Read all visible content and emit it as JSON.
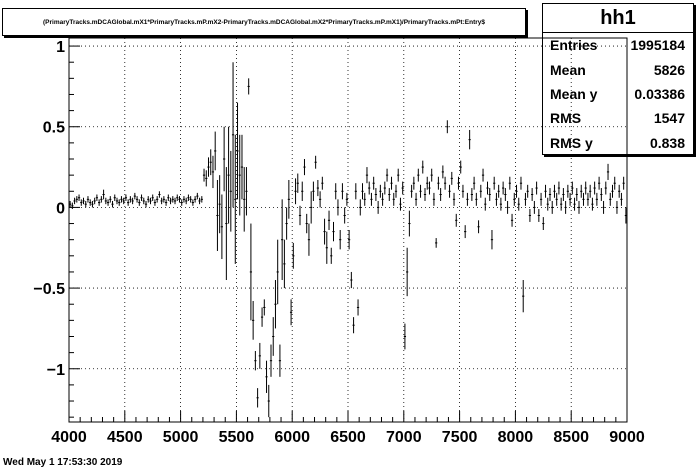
{
  "title": "(PrimaryTracks.mDCAGlobal.mX1*PrimaryTracks.mP.mX2-PrimaryTracks.mDCAGlobal.mX2*PrimaryTracks.mP.mX1)/PrimaryTracks.mPt:Entry$",
  "stats": {
    "name": "hh1",
    "rows": [
      {
        "label": "Entries",
        "value": "1995184"
      },
      {
        "label": "Mean",
        "value": "5826"
      },
      {
        "label": "Mean y",
        "value": "0.03386"
      },
      {
        "label": "RMS",
        "value": "1547"
      },
      {
        "label": "RMS y",
        "value": "0.838"
      }
    ]
  },
  "footer": {
    "date": "Wed May  1 17:53:30 2019"
  },
  "chart_data": {
    "type": "scatter",
    "title": "(PrimaryTracks.mDCAGlobal.mX1*PrimaryTracks.mP.mX2-PrimaryTracks.mDCAGlobal.mX2*PrimaryTracks.mP.mX1)/PrimaryTracks.mPt:Entry$",
    "xlabel": "",
    "ylabel": "",
    "xlim": [
      4000,
      9000
    ],
    "ylim": [
      -1.33,
      1.05
    ],
    "grid": true,
    "x_ticks": [
      "4000",
      "4500",
      "5000",
      "5500",
      "6000",
      "6500",
      "7000",
      "7500",
      "8000",
      "8500",
      "9000"
    ],
    "y_ticks": [
      "1",
      "0.5",
      "0",
      "−0.5",
      "−1"
    ],
    "points": [
      {
        "x": 4010,
        "y": 0.02,
        "e": 0.02
      },
      {
        "x": 4030,
        "y": 0.01,
        "e": 0.02
      },
      {
        "x": 4050,
        "y": 0.04,
        "e": 0.02
      },
      {
        "x": 4070,
        "y": 0.05,
        "e": 0.02
      },
      {
        "x": 4090,
        "y": 0.06,
        "e": 0.02
      },
      {
        "x": 4110,
        "y": 0.03,
        "e": 0.02
      },
      {
        "x": 4130,
        "y": 0.04,
        "e": 0.02
      },
      {
        "x": 4150,
        "y": 0.02,
        "e": 0.02
      },
      {
        "x": 4170,
        "y": 0.05,
        "e": 0.02
      },
      {
        "x": 4190,
        "y": 0.03,
        "e": 0.02
      },
      {
        "x": 4210,
        "y": 0.02,
        "e": 0.02
      },
      {
        "x": 4230,
        "y": 0.04,
        "e": 0.02
      },
      {
        "x": 4250,
        "y": 0.06,
        "e": 0.02
      },
      {
        "x": 4270,
        "y": 0.03,
        "e": 0.02
      },
      {
        "x": 4290,
        "y": 0.05,
        "e": 0.02
      },
      {
        "x": 4310,
        "y": 0.08,
        "e": 0.03
      },
      {
        "x": 4330,
        "y": 0.04,
        "e": 0.02
      },
      {
        "x": 4350,
        "y": 0.03,
        "e": 0.02
      },
      {
        "x": 4370,
        "y": 0.05,
        "e": 0.02
      },
      {
        "x": 4390,
        "y": 0.02,
        "e": 0.02
      },
      {
        "x": 4410,
        "y": 0.06,
        "e": 0.02
      },
      {
        "x": 4430,
        "y": 0.04,
        "e": 0.02
      },
      {
        "x": 4450,
        "y": 0.03,
        "e": 0.02
      },
      {
        "x": 4470,
        "y": 0.05,
        "e": 0.02
      },
      {
        "x": 4490,
        "y": 0.04,
        "e": 0.02
      },
      {
        "x": 4510,
        "y": 0.06,
        "e": 0.02
      },
      {
        "x": 4530,
        "y": 0.03,
        "e": 0.02
      },
      {
        "x": 4550,
        "y": 0.05,
        "e": 0.02
      },
      {
        "x": 4570,
        "y": 0.04,
        "e": 0.02
      },
      {
        "x": 4590,
        "y": 0.07,
        "e": 0.02
      },
      {
        "x": 4610,
        "y": 0.05,
        "e": 0.02
      },
      {
        "x": 4630,
        "y": 0.03,
        "e": 0.02
      },
      {
        "x": 4650,
        "y": 0.06,
        "e": 0.02
      },
      {
        "x": 4670,
        "y": 0.04,
        "e": 0.02
      },
      {
        "x": 4690,
        "y": 0.02,
        "e": 0.02
      },
      {
        "x": 4710,
        "y": 0.05,
        "e": 0.02
      },
      {
        "x": 4730,
        "y": 0.04,
        "e": 0.02
      },
      {
        "x": 4750,
        "y": 0.06,
        "e": 0.02
      },
      {
        "x": 4770,
        "y": 0.03,
        "e": 0.02
      },
      {
        "x": 4790,
        "y": 0.05,
        "e": 0.02
      },
      {
        "x": 4810,
        "y": 0.08,
        "e": 0.02
      },
      {
        "x": 4830,
        "y": 0.04,
        "e": 0.02
      },
      {
        "x": 4850,
        "y": 0.05,
        "e": 0.02
      },
      {
        "x": 4870,
        "y": 0.03,
        "e": 0.02
      },
      {
        "x": 4890,
        "y": 0.06,
        "e": 0.02
      },
      {
        "x": 4910,
        "y": 0.04,
        "e": 0.02
      },
      {
        "x": 4930,
        "y": 0.05,
        "e": 0.02
      },
      {
        "x": 4950,
        "y": 0.04,
        "e": 0.02
      },
      {
        "x": 4970,
        "y": 0.06,
        "e": 0.02
      },
      {
        "x": 4990,
        "y": 0.05,
        "e": 0.02
      },
      {
        "x": 5010,
        "y": 0.03,
        "e": 0.02
      },
      {
        "x": 5030,
        "y": 0.05,
        "e": 0.02
      },
      {
        "x": 5050,
        "y": 0.04,
        "e": 0.02
      },
      {
        "x": 5070,
        "y": 0.06,
        "e": 0.02
      },
      {
        "x": 5090,
        "y": 0.05,
        "e": 0.02
      },
      {
        "x": 5110,
        "y": 0.03,
        "e": 0.02
      },
      {
        "x": 5130,
        "y": 0.05,
        "e": 0.02
      },
      {
        "x": 5150,
        "y": 0.07,
        "e": 0.02
      },
      {
        "x": 5170,
        "y": 0.04,
        "e": 0.02
      },
      {
        "x": 5190,
        "y": 0.05,
        "e": 0.02
      },
      {
        "x": 5210,
        "y": 0.2,
        "e": 0.04
      },
      {
        "x": 5230,
        "y": 0.18,
        "e": 0.05
      },
      {
        "x": 5250,
        "y": 0.25,
        "e": 0.06
      },
      {
        "x": 5270,
        "y": 0.28,
        "e": 0.08
      },
      {
        "x": 5290,
        "y": 0.22,
        "e": 0.1
      },
      {
        "x": 5310,
        "y": 0.35,
        "e": 0.12
      },
      {
        "x": 5330,
        "y": -0.05,
        "e": 0.22
      },
      {
        "x": 5350,
        "y": 0.02,
        "e": 0.18
      },
      {
        "x": 5370,
        "y": -0.12,
        "e": 0.2
      },
      {
        "x": 5390,
        "y": 0.3,
        "e": 0.2
      },
      {
        "x": 5410,
        "y": -0.1,
        "e": 0.35
      },
      {
        "x": 5430,
        "y": 0.2,
        "e": 0.3
      },
      {
        "x": 5450,
        "y": 0.1,
        "e": 0.25
      },
      {
        "x": 5470,
        "y": 0.45,
        "e": 0.45
      },
      {
        "x": 5490,
        "y": 0.05,
        "e": 0.4
      },
      {
        "x": 5510,
        "y": 0.35,
        "e": 0.3
      },
      {
        "x": 5530,
        "y": 0.2,
        "e": 0.25
      },
      {
        "x": 5550,
        "y": 0.25,
        "e": 0.2
      },
      {
        "x": 5570,
        "y": 0.05,
        "e": 0.2
      },
      {
        "x": 5590,
        "y": 0.1,
        "e": 0.15
      },
      {
        "x": 5610,
        "y": 0.75,
        "e": 0.05
      },
      {
        "x": 5630,
        "y": -0.4,
        "e": 0.3
      },
      {
        "x": 5650,
        "y": -0.7,
        "e": 0.12
      },
      {
        "x": 5670,
        "y": -0.95,
        "e": 0.06
      },
      {
        "x": 5690,
        "y": -1.18,
        "e": 0.06
      },
      {
        "x": 5710,
        "y": -0.92,
        "e": 0.08
      },
      {
        "x": 5730,
        "y": -0.68,
        "e": 0.06
      },
      {
        "x": 5750,
        "y": -0.62,
        "e": 0.05
      },
      {
        "x": 5770,
        "y": -1.05,
        "e": 0.1
      },
      {
        "x": 5790,
        "y": -1.2,
        "e": 0.1
      },
      {
        "x": 5810,
        "y": -0.95,
        "e": 0.1
      },
      {
        "x": 5830,
        "y": -0.8,
        "e": 0.12
      },
      {
        "x": 5850,
        "y": -0.6,
        "e": 0.15
      },
      {
        "x": 5870,
        "y": -0.4,
        "e": 0.2
      },
      {
        "x": 5890,
        "y": -0.95,
        "e": 0.1
      },
      {
        "x": 5910,
        "y": -0.2,
        "e": 0.25
      },
      {
        "x": 5930,
        "y": -0.35,
        "e": 0.15
      },
      {
        "x": 5950,
        "y": -0.1,
        "e": 0.1
      },
      {
        "x": 5970,
        "y": 0.05,
        "e": 0.12
      },
      {
        "x": 5990,
        "y": -0.65,
        "e": 0.08
      },
      {
        "x": 6010,
        "y": -0.3,
        "e": 0.08
      },
      {
        "x": 6030,
        "y": 0.1,
        "e": 0.08
      },
      {
        "x": 6050,
        "y": 0.15,
        "e": 0.06
      },
      {
        "x": 6070,
        "y": -0.05,
        "e": 0.06
      },
      {
        "x": 6090,
        "y": 0.1,
        "e": 0.06
      },
      {
        "x": 6110,
        "y": 0.25,
        "e": 0.05
      },
      {
        "x": 6130,
        "y": -0.1,
        "e": 0.06
      },
      {
        "x": 6150,
        "y": -0.2,
        "e": 0.1
      },
      {
        "x": 6170,
        "y": 0.0,
        "e": 0.1
      },
      {
        "x": 6190,
        "y": 0.1,
        "e": 0.06
      },
      {
        "x": 6210,
        "y": 0.28,
        "e": 0.04
      },
      {
        "x": 6230,
        "y": 0.12,
        "e": 0.05
      },
      {
        "x": 6250,
        "y": 0.05,
        "e": 0.05
      },
      {
        "x": 6270,
        "y": 0.15,
        "e": 0.04
      },
      {
        "x": 6290,
        "y": -0.15,
        "e": 0.08
      },
      {
        "x": 6310,
        "y": -0.25,
        "e": 0.1
      },
      {
        "x": 6330,
        "y": -0.08,
        "e": 0.06
      },
      {
        "x": 6350,
        "y": -0.3,
        "e": 0.05
      },
      {
        "x": 6370,
        "y": -0.15,
        "e": 0.06
      },
      {
        "x": 6390,
        "y": 0.1,
        "e": 0.05
      },
      {
        "x": 6410,
        "y": 0.0,
        "e": 0.05
      },
      {
        "x": 6430,
        "y": -0.2,
        "e": 0.06
      },
      {
        "x": 6450,
        "y": 0.1,
        "e": 0.05
      },
      {
        "x": 6470,
        "y": -0.05,
        "e": 0.05
      },
      {
        "x": 6490,
        "y": 0.05,
        "e": 0.04
      },
      {
        "x": 6510,
        "y": -0.2,
        "e": 0.06
      },
      {
        "x": 6530,
        "y": -0.45,
        "e": 0.05
      },
      {
        "x": 6550,
        "y": -0.73,
        "e": 0.05
      },
      {
        "x": 6570,
        "y": 0.1,
        "e": 0.05
      },
      {
        "x": 6590,
        "y": -0.62,
        "e": 0.05
      },
      {
        "x": 6610,
        "y": 0.0,
        "e": 0.05
      },
      {
        "x": 6630,
        "y": 0.1,
        "e": 0.05
      },
      {
        "x": 6650,
        "y": 0.05,
        "e": 0.04
      },
      {
        "x": 6670,
        "y": 0.2,
        "e": 0.05
      },
      {
        "x": 6690,
        "y": 0.12,
        "e": 0.04
      },
      {
        "x": 6710,
        "y": 0.05,
        "e": 0.04
      },
      {
        "x": 6730,
        "y": 0.15,
        "e": 0.04
      },
      {
        "x": 6750,
        "y": 0.08,
        "e": 0.04
      },
      {
        "x": 6770,
        "y": 0.0,
        "e": 0.04
      },
      {
        "x": 6790,
        "y": 0.1,
        "e": 0.04
      },
      {
        "x": 6810,
        "y": 0.05,
        "e": 0.04
      },
      {
        "x": 6830,
        "y": 0.12,
        "e": 0.04
      },
      {
        "x": 6850,
        "y": 0.2,
        "e": 0.04
      },
      {
        "x": 6870,
        "y": 0.08,
        "e": 0.04
      },
      {
        "x": 6890,
        "y": 0.15,
        "e": 0.04
      },
      {
        "x": 6910,
        "y": 0.05,
        "e": 0.04
      },
      {
        "x": 6930,
        "y": 0.1,
        "e": 0.04
      },
      {
        "x": 6950,
        "y": 0.2,
        "e": 0.04
      },
      {
        "x": 6970,
        "y": 0.02,
        "e": 0.04
      },
      {
        "x": 6990,
        "y": 0.12,
        "e": 0.04
      },
      {
        "x": 7010,
        "y": -0.8,
        "e": 0.08
      },
      {
        "x": 7030,
        "y": -0.4,
        "e": 0.15
      },
      {
        "x": 7050,
        "y": -0.1,
        "e": 0.08
      },
      {
        "x": 7070,
        "y": 0.1,
        "e": 0.04
      },
      {
        "x": 7090,
        "y": 0.15,
        "e": 0.04
      },
      {
        "x": 7110,
        "y": 0.05,
        "e": 0.04
      },
      {
        "x": 7130,
        "y": 0.2,
        "e": 0.04
      },
      {
        "x": 7150,
        "y": 0.1,
        "e": 0.04
      },
      {
        "x": 7170,
        "y": 0.25,
        "e": 0.04
      },
      {
        "x": 7190,
        "y": 0.08,
        "e": 0.04
      },
      {
        "x": 7210,
        "y": 0.15,
        "e": 0.04
      },
      {
        "x": 7230,
        "y": 0.12,
        "e": 0.04
      },
      {
        "x": 7250,
        "y": 0.2,
        "e": 0.04
      },
      {
        "x": 7270,
        "y": 0.05,
        "e": 0.04
      },
      {
        "x": 7290,
        "y": -0.22,
        "e": 0.03
      },
      {
        "x": 7310,
        "y": 0.15,
        "e": 0.04
      },
      {
        "x": 7330,
        "y": 0.08,
        "e": 0.04
      },
      {
        "x": 7350,
        "y": 0.22,
        "e": 0.04
      },
      {
        "x": 7370,
        "y": 0.15,
        "e": 0.04
      },
      {
        "x": 7390,
        "y": 0.5,
        "e": 0.04
      },
      {
        "x": 7410,
        "y": 0.1,
        "e": 0.04
      },
      {
        "x": 7430,
        "y": 0.18,
        "e": 0.04
      },
      {
        "x": 7450,
        "y": 0.05,
        "e": 0.04
      },
      {
        "x": 7470,
        "y": -0.08,
        "e": 0.04
      },
      {
        "x": 7490,
        "y": 0.15,
        "e": 0.04
      },
      {
        "x": 7510,
        "y": 0.25,
        "e": 0.04
      },
      {
        "x": 7530,
        "y": 0.1,
        "e": 0.04
      },
      {
        "x": 7550,
        "y": -0.15,
        "e": 0.04
      },
      {
        "x": 7570,
        "y": 0.05,
        "e": 0.04
      },
      {
        "x": 7590,
        "y": 0.42,
        "e": 0.06
      },
      {
        "x": 7610,
        "y": 0.08,
        "e": 0.04
      },
      {
        "x": 7630,
        "y": 0.15,
        "e": 0.04
      },
      {
        "x": 7650,
        "y": 0.05,
        "e": 0.04
      },
      {
        "x": 7670,
        "y": -0.12,
        "e": 0.04
      },
      {
        "x": 7690,
        "y": 0.1,
        "e": 0.04
      },
      {
        "x": 7710,
        "y": 0.2,
        "e": 0.04
      },
      {
        "x": 7730,
        "y": 0.02,
        "e": 0.04
      },
      {
        "x": 7750,
        "y": 0.12,
        "e": 0.04
      },
      {
        "x": 7770,
        "y": 0.08,
        "e": 0.04
      },
      {
        "x": 7790,
        "y": -0.2,
        "e": 0.06
      },
      {
        "x": 7810,
        "y": 0.15,
        "e": 0.04
      },
      {
        "x": 7830,
        "y": 0.05,
        "e": 0.04
      },
      {
        "x": 7850,
        "y": 0.1,
        "e": 0.04
      },
      {
        "x": 7870,
        "y": 0.02,
        "e": 0.04
      },
      {
        "x": 7890,
        "y": 0.12,
        "e": 0.04
      },
      {
        "x": 7910,
        "y": 0.08,
        "e": 0.04
      },
      {
        "x": 7930,
        "y": 0.0,
        "e": 0.04
      },
      {
        "x": 7950,
        "y": 0.15,
        "e": 0.04
      },
      {
        "x": 7970,
        "y": -0.08,
        "e": 0.04
      },
      {
        "x": 7990,
        "y": 0.05,
        "e": 0.04
      },
      {
        "x": 8010,
        "y": 0.1,
        "e": 0.04
      },
      {
        "x": 8030,
        "y": 0.02,
        "e": 0.04
      },
      {
        "x": 8050,
        "y": 0.15,
        "e": 0.04
      },
      {
        "x": 8070,
        "y": -0.55,
        "e": 0.1
      },
      {
        "x": 8090,
        "y": 0.05,
        "e": 0.04
      },
      {
        "x": 8110,
        "y": 0.1,
        "e": 0.04
      },
      {
        "x": 8130,
        "y": -0.05,
        "e": 0.04
      },
      {
        "x": 8150,
        "y": 0.08,
        "e": 0.04
      },
      {
        "x": 8170,
        "y": 0.0,
        "e": 0.04
      },
      {
        "x": 8190,
        "y": 0.12,
        "e": 0.04
      },
      {
        "x": 8210,
        "y": -0.05,
        "e": 0.04
      },
      {
        "x": 8230,
        "y": 0.05,
        "e": 0.04
      },
      {
        "x": 8250,
        "y": -0.1,
        "e": 0.04
      },
      {
        "x": 8270,
        "y": 0.1,
        "e": 0.04
      },
      {
        "x": 8290,
        "y": 0.02,
        "e": 0.04
      },
      {
        "x": 8310,
        "y": 0.08,
        "e": 0.04
      },
      {
        "x": 8330,
        "y": 0.0,
        "e": 0.04
      },
      {
        "x": 8350,
        "y": 0.1,
        "e": 0.04
      },
      {
        "x": 8370,
        "y": 0.05,
        "e": 0.04
      },
      {
        "x": 8390,
        "y": 0.12,
        "e": 0.04
      },
      {
        "x": 8410,
        "y": 0.02,
        "e": 0.04
      },
      {
        "x": 8430,
        "y": 0.08,
        "e": 0.04
      },
      {
        "x": 8450,
        "y": 0.0,
        "e": 0.04
      },
      {
        "x": 8470,
        "y": 0.1,
        "e": 0.04
      },
      {
        "x": 8490,
        "y": 0.05,
        "e": 0.04
      },
      {
        "x": 8510,
        "y": 0.12,
        "e": 0.04
      },
      {
        "x": 8530,
        "y": 0.02,
        "e": 0.04
      },
      {
        "x": 8550,
        "y": 0.08,
        "e": 0.04
      },
      {
        "x": 8570,
        "y": 0.0,
        "e": 0.04
      },
      {
        "x": 8590,
        "y": 0.1,
        "e": 0.04
      },
      {
        "x": 8610,
        "y": 0.05,
        "e": 0.04
      },
      {
        "x": 8630,
        "y": 0.12,
        "e": 0.04
      },
      {
        "x": 8650,
        "y": 0.05,
        "e": 0.04
      },
      {
        "x": 8670,
        "y": 0.1,
        "e": 0.04
      },
      {
        "x": 8690,
        "y": 0.02,
        "e": 0.04
      },
      {
        "x": 8710,
        "y": 0.12,
        "e": 0.04
      },
      {
        "x": 8730,
        "y": 0.05,
        "e": 0.04
      },
      {
        "x": 8750,
        "y": 0.15,
        "e": 0.04
      },
      {
        "x": 8770,
        "y": 0.08,
        "e": 0.04
      },
      {
        "x": 8790,
        "y": 0.0,
        "e": 0.04
      },
      {
        "x": 8810,
        "y": 0.12,
        "e": 0.04
      },
      {
        "x": 8830,
        "y": 0.22,
        "e": 0.05
      },
      {
        "x": 8850,
        "y": 0.05,
        "e": 0.04
      },
      {
        "x": 8870,
        "y": 0.1,
        "e": 0.04
      },
      {
        "x": 8890,
        "y": 0.15,
        "e": 0.04
      },
      {
        "x": 8910,
        "y": 0.0,
        "e": 0.04
      },
      {
        "x": 8930,
        "y": 0.1,
        "e": 0.04
      },
      {
        "x": 8950,
        "y": 0.05,
        "e": 0.04
      },
      {
        "x": 8970,
        "y": 0.15,
        "e": 0.04
      },
      {
        "x": 8990,
        "y": -0.05,
        "e": 0.05
      }
    ]
  }
}
